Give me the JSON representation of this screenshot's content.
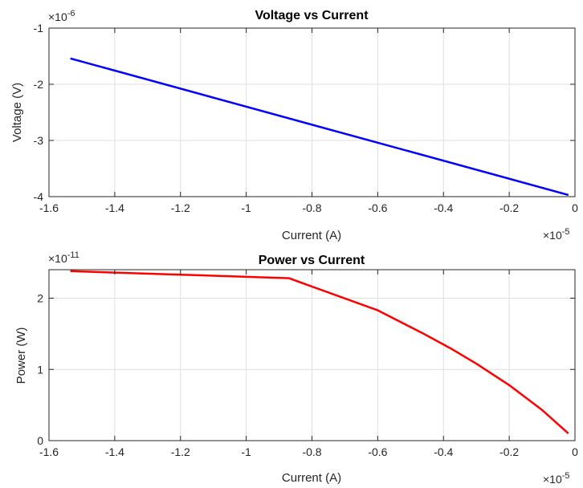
{
  "chart_data": [
    {
      "type": "line",
      "title": "Voltage vs Current",
      "xlabel": "Current (A)",
      "ylabel": "Voltage (V)",
      "x_multiplier": "×10",
      "x_multiplier_exp": "-5",
      "y_multiplier": "×10",
      "y_multiplier_exp": "-6",
      "xlim": [
        -1.6,
        0
      ],
      "ylim": [
        -4,
        -1
      ],
      "xticks": [
        -1.6,
        -1.4,
        -1.2,
        -1,
        -0.8,
        -0.6,
        -0.4,
        -0.2,
        0
      ],
      "xtick_labels": [
        "-1.6",
        "-1.4",
        "-1.2",
        "-1",
        "-0.8",
        "-0.6",
        "-0.4",
        "-0.2",
        "0"
      ],
      "yticks": [
        -4,
        -3,
        -2,
        -1
      ],
      "ytick_labels": [
        "-4",
        "-3",
        "-2",
        "-1"
      ],
      "grid": true,
      "color": "#0000ff",
      "series": [
        {
          "x": [
            -1.535,
            -0.02
          ],
          "y": [
            -1.54,
            -3.97
          ]
        }
      ]
    },
    {
      "type": "line",
      "title": "Power vs Current",
      "xlabel": "Current (A)",
      "ylabel": "Power (W)",
      "x_multiplier": "×10",
      "x_multiplier_exp": "-5",
      "y_multiplier": "×10",
      "y_multiplier_exp": "-11",
      "xlim": [
        -1.6,
        0
      ],
      "ylim": [
        0,
        2.4
      ],
      "xticks": [
        -1.6,
        -1.4,
        -1.2,
        -1,
        -0.8,
        -0.6,
        -0.4,
        -0.2,
        0
      ],
      "xtick_labels": [
        "-1.6",
        "-1.4",
        "-1.2",
        "-1",
        "-0.8",
        "-0.6",
        "-0.4",
        "-0.2",
        "0"
      ],
      "yticks": [
        0,
        1,
        2
      ],
      "ytick_labels": [
        "0",
        "1",
        "2"
      ],
      "grid": true,
      "color": "#ff0000",
      "series": [
        {
          "x": [
            -1.535,
            -1.2,
            -0.87,
            -0.6,
            -0.46,
            -0.38,
            -0.3,
            -0.2,
            -0.1,
            -0.02
          ],
          "y": [
            2.38,
            2.33,
            2.28,
            1.83,
            1.5,
            1.3,
            1.08,
            0.78,
            0.43,
            0.1
          ]
        }
      ]
    }
  ]
}
